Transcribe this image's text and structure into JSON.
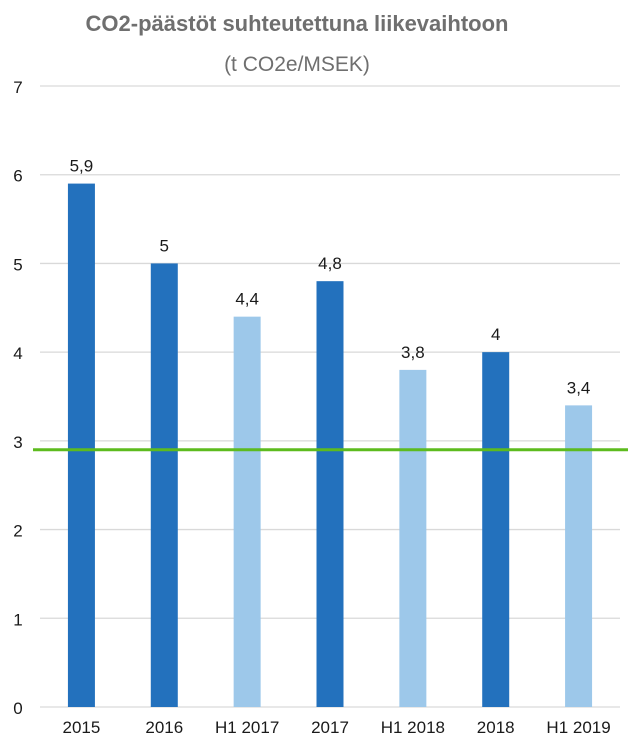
{
  "chart_data": {
    "type": "bar",
    "title": "CO2-päästöt suhteutettuna liikevaihtoon",
    "subtitle": "(t CO2e/MSEK)",
    "categories": [
      "2015",
      "2016",
      "H1 2017",
      "2017",
      "H1 2018",
      "2018",
      "H1 2019"
    ],
    "values": [
      5.9,
      5,
      4.4,
      4.8,
      3.8,
      4,
      3.4
    ],
    "data_labels": [
      "5,9",
      "5",
      "4,4",
      "4,8",
      "3,8",
      "4",
      "3,4"
    ],
    "y_ticks": [
      "0",
      "1",
      "2",
      "3",
      "4",
      "5",
      "6",
      "7"
    ],
    "ylim": [
      0,
      7
    ],
    "grid": true,
    "legend": "none",
    "reference_line": {
      "value": 2.9,
      "color": "#5dbb1e"
    },
    "colors": {
      "full_year": "#2371bd",
      "half_year": "#9dc8ea",
      "grid": "#d9d9d9",
      "title": "#6f6f6f",
      "subtitle": "#6f6f6f",
      "tick_label": "#1a1a1a",
      "data_label": "#1a1a1a"
    },
    "bar_color_keys": [
      "full_year",
      "full_year",
      "half_year",
      "full_year",
      "half_year",
      "full_year",
      "half_year"
    ]
  }
}
